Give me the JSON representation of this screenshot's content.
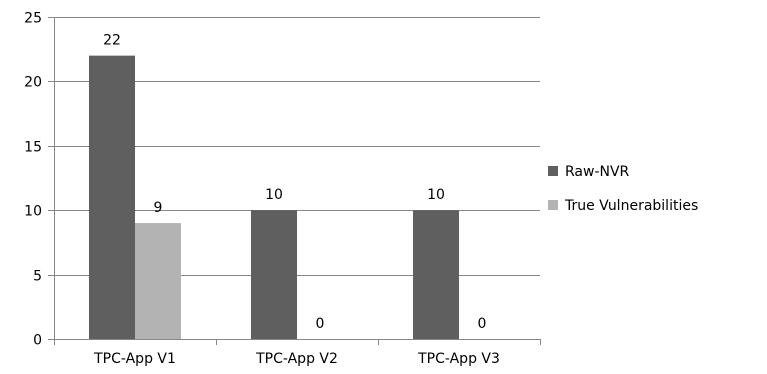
{
  "chart_data": {
    "type": "bar",
    "title": "",
    "xlabel": "",
    "ylabel": "",
    "categories": [
      "TPC-App V1",
      "TPC-App V2",
      "TPC-App V3"
    ],
    "series": [
      {
        "name": "Raw-NVR",
        "values": [
          22,
          10,
          10
        ],
        "color": "#5f5f5f"
      },
      {
        "name": "True Vulnerabilities",
        "values": [
          9,
          0,
          0
        ],
        "color": "#b3b3b3"
      }
    ],
    "ylim": [
      0,
      25
    ],
    "yticks": [
      "0",
      "5",
      "10",
      "15",
      "20",
      "25"
    ],
    "grid": true,
    "legend": "right"
  }
}
